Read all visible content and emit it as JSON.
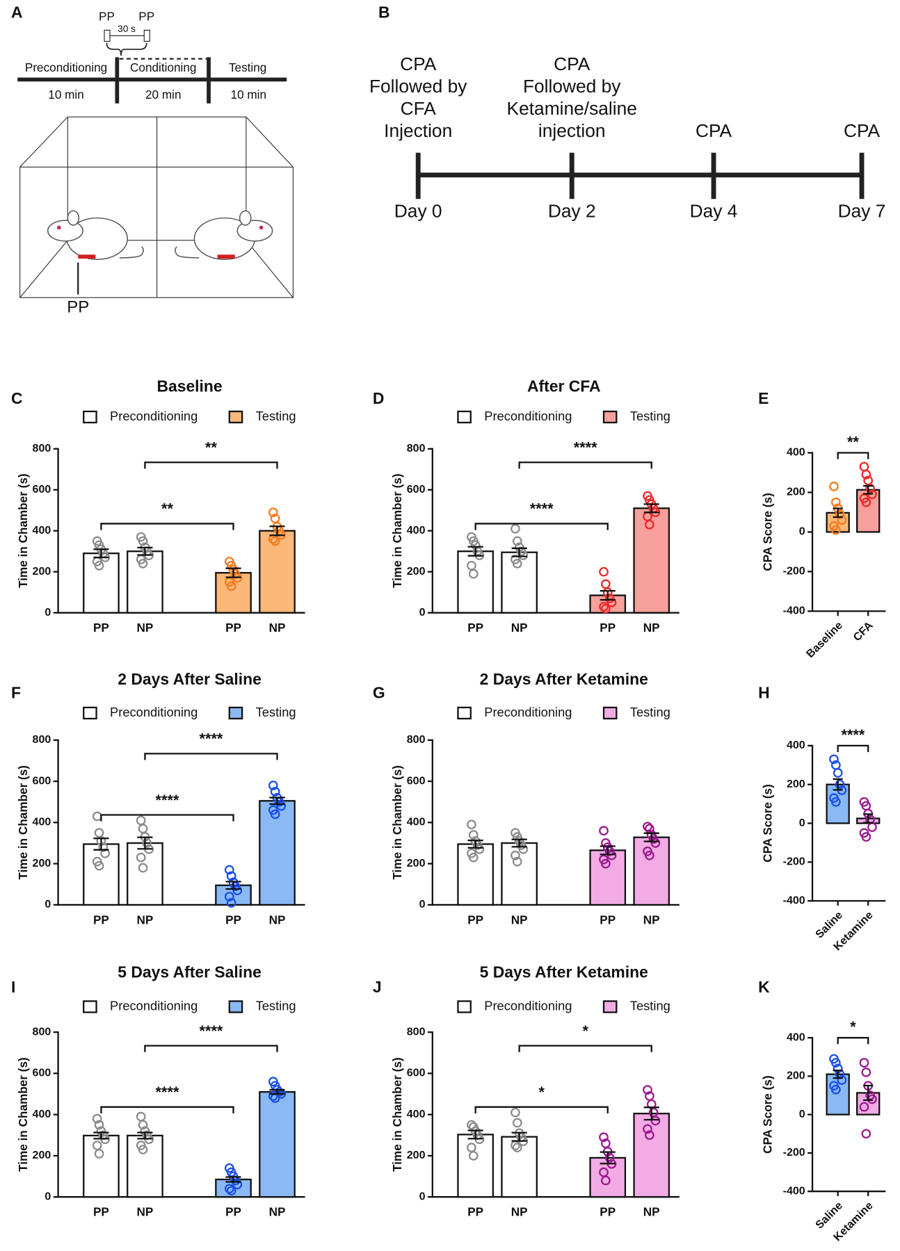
{
  "panel_a": {
    "label": "A",
    "stimulus": [
      "PP",
      "PP"
    ],
    "interval": "30 s",
    "phases": [
      "Preconditioning",
      "Conditioning",
      "Testing"
    ],
    "durations": [
      "10 min",
      "20 min",
      "10 min"
    ],
    "paw_label": "PP"
  },
  "panel_b": {
    "label": "B",
    "events": [
      {
        "lines": [
          "CPA",
          "Followed by",
          "CFA",
          "Injection"
        ],
        "day": "Day 0"
      },
      {
        "lines": [
          "CPA",
          "Followed by",
          "Ketamine/saline",
          "injection"
        ],
        "day": "Day 2"
      },
      {
        "lines": [
          "CPA"
        ],
        "day": "Day 4"
      },
      {
        "lines": [
          "CPA"
        ],
        "day": "Day 7"
      }
    ]
  },
  "chart_data": [
    {
      "type": "bar",
      "panel_label": "C",
      "title": "Baseline",
      "categories": [
        "PP",
        "NP"
      ],
      "y_label": "Time in Chamber (s)",
      "ylim": [
        0,
        800
      ],
      "yticks": [
        0,
        200,
        400,
        600,
        800
      ],
      "annotations": [
        "**",
        "**"
      ],
      "series": [
        {
          "name": "Preconditioning",
          "color": "#ffffff",
          "point_color": "#8c8c8c",
          "values": [
            290,
            300
          ],
          "errors": [
            20,
            18
          ],
          "points": [
            [
              350,
              330,
              310,
              290,
              270,
              250,
              230
            ],
            [
              370,
              350,
              320,
              300,
              280,
              260,
              240
            ]
          ]
        },
        {
          "name": "Testing",
          "color": "#fbb878",
          "point_color": "#f47b20",
          "values": [
            195,
            400
          ],
          "errors": [
            22,
            22
          ],
          "points": [
            [
              250,
              230,
              210,
              190,
              170,
              150,
              130
            ],
            [
              490,
              460,
              420,
              400,
              380,
              360,
              350
            ]
          ]
        }
      ]
    },
    {
      "type": "bar",
      "panel_label": "D",
      "title": "After CFA",
      "categories": [
        "PP",
        "NP"
      ],
      "y_label": "Time in Chamber (s)",
      "ylim": [
        0,
        800
      ],
      "yticks": [
        0,
        200,
        400,
        600,
        800
      ],
      "annotations": [
        "****",
        "****"
      ],
      "series": [
        {
          "name": "Preconditioning",
          "color": "#ffffff",
          "point_color": "#8c8c8c",
          "values": [
            300,
            295
          ],
          "errors": [
            22,
            20
          ],
          "points": [
            [
              370,
              350,
              330,
              300,
              280,
              230,
              190
            ],
            [
              410,
              350,
              320,
              300,
              280,
              260,
              240
            ]
          ]
        },
        {
          "name": "Testing",
          "color": "#f8a19c",
          "point_color": "#ea2a2a",
          "values": [
            85,
            510
          ],
          "errors": [
            22,
            20
          ],
          "points": [
            [
              200,
              140,
              100,
              70,
              50,
              30,
              20
            ],
            [
              570,
              550,
              530,
              510,
              490,
              470,
              430
            ]
          ]
        }
      ]
    },
    {
      "type": "bar",
      "panel_label": "E",
      "categories": [
        "Baseline",
        "CFA"
      ],
      "y_label": "CPA Score (s)",
      "ylim": [
        -400,
        400
      ],
      "yticks": [
        -400,
        -200,
        0,
        200,
        400
      ],
      "annotations": [
        "**"
      ],
      "values": [
        97,
        213
      ],
      "errors": [
        22,
        20
      ],
      "colors": [
        "#fbb878",
        "#f8a19c"
      ],
      "point_colors": [
        "#f47b20",
        "#ea2a2a"
      ],
      "points": [
        [
          230,
          150,
          120,
          90,
          60,
          30,
          10
        ],
        [
          330,
          290,
          260,
          220,
          190,
          170,
          150
        ]
      ]
    },
    {
      "type": "bar",
      "panel_label": "F",
      "title": "2 Days After Saline",
      "categories": [
        "PP",
        "NP"
      ],
      "y_label": "Time in Chamber (s)",
      "ylim": [
        0,
        800
      ],
      "yticks": [
        0,
        200,
        400,
        600,
        800
      ],
      "annotations": [
        "****",
        "****"
      ],
      "series": [
        {
          "name": "Preconditioning",
          "color": "#ffffff",
          "point_color": "#8c8c8c",
          "values": [
            295,
            300
          ],
          "errors": [
            28,
            28
          ],
          "points": [
            [
              430,
              350,
              310,
              280,
              250,
              210,
              190
            ],
            [
              410,
              370,
              330,
              300,
              270,
              230,
              180
            ]
          ]
        },
        {
          "name": "Testing",
          "color": "#8ab9f4",
          "point_color": "#1a4fe8",
          "values": [
            95,
            505
          ],
          "errors": [
            18,
            16
          ],
          "points": [
            [
              170,
              140,
              110,
              90,
              70,
              40,
              10
            ],
            [
              580,
              550,
              520,
              500,
              480,
              460,
              440
            ]
          ]
        }
      ]
    },
    {
      "type": "bar",
      "panel_label": "G",
      "title": "2 Days After Ketamine",
      "categories": [
        "PP",
        "NP"
      ],
      "y_label": "Time in Chamber (s)",
      "ylim": [
        0,
        800
      ],
      "yticks": [
        0,
        200,
        400,
        600,
        800
      ],
      "series": [
        {
          "name": "Preconditioning",
          "color": "#ffffff",
          "point_color": "#8c8c8c",
          "values": [
            295,
            300
          ],
          "errors": [
            18,
            18
          ],
          "points": [
            [
              390,
              340,
              310,
              290,
              270,
              250,
              230
            ],
            [
              350,
              330,
              310,
              290,
              270,
              240,
              210
            ]
          ]
        },
        {
          "name": "Testing",
          "color": "#f2abe4",
          "point_color": "#9b1a8f",
          "values": [
            265,
            328
          ],
          "errors": [
            20,
            20
          ],
          "points": [
            [
              360,
              300,
              280,
              260,
              240,
              220,
              200
            ],
            [
              380,
              370,
              340,
              320,
              300,
              260,
              240
            ]
          ]
        }
      ]
    },
    {
      "type": "bar",
      "panel_label": "H",
      "categories": [
        "Saline",
        "Ketamine"
      ],
      "y_label": "CPA Score (s)",
      "ylim": [
        -400,
        400
      ],
      "yticks": [
        -400,
        -200,
        0,
        200,
        400
      ],
      "annotations": [
        "****"
      ],
      "values": [
        200,
        25
      ],
      "errors": [
        28,
        22
      ],
      "colors": [
        "#8ab9f4",
        "#f2abe4"
      ],
      "point_colors": [
        "#1a4fe8",
        "#9b1a8f"
      ],
      "points": [
        [
          330,
          300,
          260,
          200,
          170,
          130,
          110
        ],
        [
          110,
          90,
          50,
          20,
          -20,
          -50,
          -70
        ]
      ]
    },
    {
      "type": "bar",
      "panel_label": "I",
      "title": "5 Days After Saline",
      "categories": [
        "PP",
        "NP"
      ],
      "y_label": "Time in Chamber (s)",
      "ylim": [
        0,
        800
      ],
      "yticks": [
        0,
        200,
        400,
        600,
        800
      ],
      "annotations": [
        "****",
        "****"
      ],
      "series": [
        {
          "name": "Preconditioning",
          "color": "#ffffff",
          "point_color": "#8c8c8c",
          "values": [
            298,
            298
          ],
          "errors": [
            15,
            15
          ],
          "points": [
            [
              380,
              350,
              320,
              300,
              280,
              250,
              210
            ],
            [
              390,
              350,
              320,
              300,
              280,
              250,
              230
            ]
          ]
        },
        {
          "name": "Testing",
          "color": "#8ab9f4",
          "point_color": "#1a4fe8",
          "values": [
            85,
            510
          ],
          "errors": [
            12,
            10
          ],
          "points": [
            [
              140,
              120,
              100,
              80,
              60,
              40,
              30
            ],
            [
              560,
              540,
              520,
              510,
              500,
              490,
              480
            ]
          ]
        }
      ]
    },
    {
      "type": "bar",
      "panel_label": "J",
      "title": "5 Days After Ketamine",
      "categories": [
        "PP",
        "NP"
      ],
      "y_label": "Time in Chamber (s)",
      "ylim": [
        0,
        800
      ],
      "yticks": [
        0,
        200,
        400,
        600,
        800
      ],
      "annotations": [
        "*",
        "*"
      ],
      "series": [
        {
          "name": "Preconditioning",
          "color": "#ffffff",
          "point_color": "#8c8c8c",
          "values": [
            303,
            292
          ],
          "errors": [
            20,
            20
          ],
          "points": [
            [
              350,
              340,
              320,
              300,
              280,
              240,
              200
            ],
            [
              410,
              360,
              310,
              290,
              270,
              250,
              240
            ]
          ]
        },
        {
          "name": "Testing",
          "color": "#f2abe4",
          "point_color": "#9b1a8f",
          "values": [
            190,
            405
          ],
          "errors": [
            28,
            30
          ],
          "points": [
            [
              290,
              260,
              220,
              190,
              160,
              120,
              80
            ],
            [
              520,
              490,
              450,
              410,
              370,
              330,
              300
            ]
          ]
        }
      ]
    },
    {
      "type": "bar",
      "panel_label": "K",
      "categories": [
        "Saline",
        "Ketamine"
      ],
      "y_label": "CPA Score (s)",
      "ylim": [
        -400,
        400
      ],
      "yticks": [
        -400,
        -200,
        0,
        200,
        400
      ],
      "annotations": [
        "*"
      ],
      "values": [
        210,
        113
      ],
      "errors": [
        20,
        38
      ],
      "colors": [
        "#8ab9f4",
        "#f2abe4"
      ],
      "point_colors": [
        "#1a4fe8",
        "#9b1a8f"
      ],
      "points": [
        [
          290,
          270,
          240,
          210,
          180,
          150,
          130
        ],
        [
          270,
          220,
          150,
          100,
          80,
          40,
          -100
        ]
      ]
    }
  ]
}
